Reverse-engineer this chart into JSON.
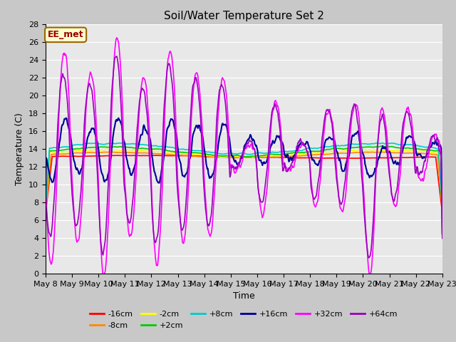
{
  "title": "Soil/Water Temperature Set 2",
  "xlabel": "Time",
  "ylabel": "Temperature (C)",
  "ylim": [
    0,
    28
  ],
  "yticks": [
    0,
    2,
    4,
    6,
    8,
    10,
    12,
    14,
    16,
    18,
    20,
    22,
    24,
    26,
    28
  ],
  "annotation_text": "EE_met",
  "plot_bg_color": "#e8e8e8",
  "fig_bg_color": "#c8c8c8",
  "series": [
    {
      "label": "-16cm",
      "color": "#ff0000",
      "lw": 1.2
    },
    {
      "label": "-8cm",
      "color": "#ff8800",
      "lw": 1.2
    },
    {
      "label": "-2cm",
      "color": "#ffff00",
      "lw": 1.2
    },
    {
      "label": "+2cm",
      "color": "#00cc00",
      "lw": 1.2
    },
    {
      "label": "+8cm",
      "color": "#00cccc",
      "lw": 1.2
    },
    {
      "label": "+16cm",
      "color": "#000099",
      "lw": 1.5
    },
    {
      "label": "+32cm",
      "color": "#ff00ff",
      "lw": 1.2
    },
    {
      "label": "+64cm",
      "color": "#9900bb",
      "lw": 1.2
    }
  ],
  "grid_color": "#ffffff",
  "tick_label_size": 8,
  "num_points": 720
}
